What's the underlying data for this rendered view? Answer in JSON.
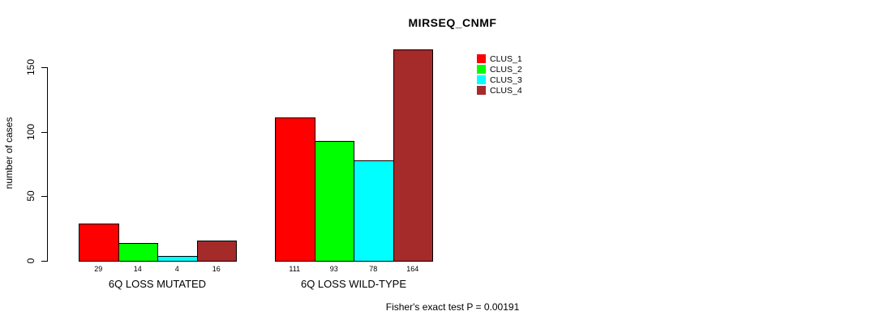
{
  "chart_data": {
    "type": "bar",
    "title": "MIRSEQ_CNMF",
    "ylabel": "number of cases",
    "xlabel": "",
    "categories": [
      "6Q LOSS MUTATED",
      "6Q LOSS WILD-TYPE"
    ],
    "series": [
      {
        "name": "CLUS_1",
        "color": "#FF0000",
        "values": [
          29,
          111
        ]
      },
      {
        "name": "CLUS_2",
        "color": "#00FF00",
        "values": [
          14,
          93
        ]
      },
      {
        "name": "CLUS_3",
        "color": "#00FFFF",
        "values": [
          4,
          78
        ]
      },
      {
        "name": "CLUS_4",
        "color": "#A52A2A",
        "values": [
          16,
          164
        ]
      }
    ],
    "yticks": [
      0,
      50,
      100,
      150
    ],
    "ylim": [
      0,
      164
    ],
    "bar_value_labels": [
      [
        29,
        14,
        4,
        16
      ],
      [
        111,
        93,
        78,
        164
      ]
    ],
    "legend_entries": [
      "CLUS_1",
      "CLUS_2",
      "CLUS_3",
      "CLUS_4"
    ],
    "legend_position": "inside-top-right",
    "grid": false,
    "annotation": "Fisher's exact test P = 0.00191"
  }
}
